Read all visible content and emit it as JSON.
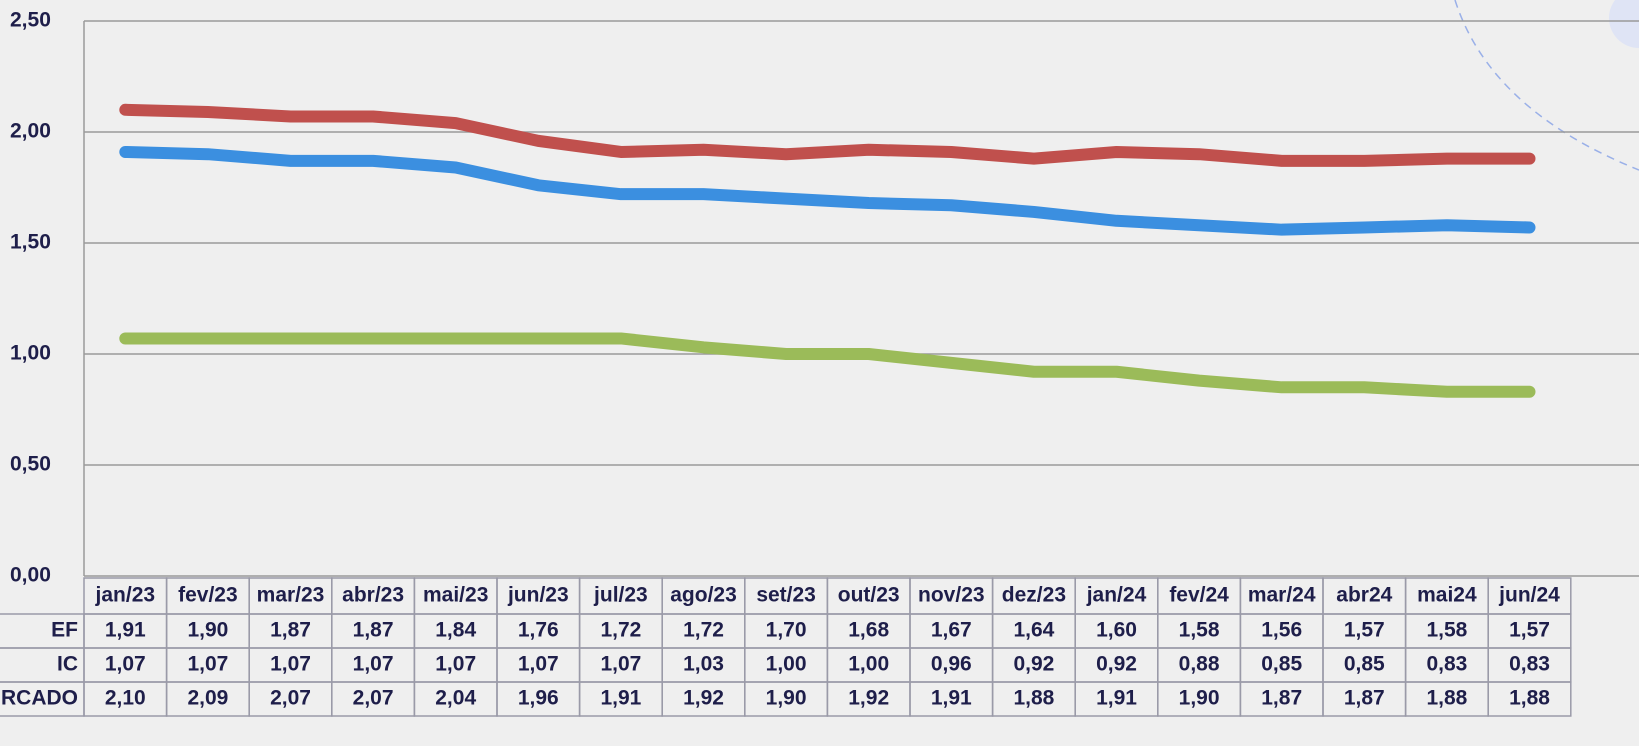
{
  "chart_data": {
    "type": "line",
    "categories": [
      "jan/23",
      "fev/23",
      "mar/23",
      "abr/23",
      "mai/23",
      "jun/23",
      "jul/23",
      "ago/23",
      "set/23",
      "out/23",
      "nov/23",
      "dez/23",
      "jan/24",
      "fev/24",
      "mar/24",
      "abr24",
      "mai24",
      "jun/24"
    ],
    "series": [
      {
        "name": "EF",
        "color": "#3b8fe0",
        "values": [
          1.91,
          1.9,
          1.87,
          1.87,
          1.84,
          1.76,
          1.72,
          1.72,
          1.7,
          1.68,
          1.67,
          1.64,
          1.6,
          1.58,
          1.56,
          1.57,
          1.58,
          1.57
        ],
        "value_labels": [
          "1,91",
          "1,90",
          "1,87",
          "1,87",
          "1,84",
          "1,76",
          "1,72",
          "1,72",
          "1,70",
          "1,68",
          "1,67",
          "1,64",
          "1,60",
          "1,58",
          "1,56",
          "1,57",
          "1,58",
          "1,57"
        ]
      },
      {
        "name": "IC",
        "color": "#9bbb59",
        "values": [
          1.07,
          1.07,
          1.07,
          1.07,
          1.07,
          1.07,
          1.07,
          1.03,
          1.0,
          1.0,
          0.96,
          0.92,
          0.92,
          0.88,
          0.85,
          0.85,
          0.83,
          0.83
        ],
        "value_labels": [
          "1,07",
          "1,07",
          "1,07",
          "1,07",
          "1,07",
          "1,07",
          "1,07",
          "1,03",
          "1,00",
          "1,00",
          "0,96",
          "0,92",
          "0,92",
          "0,88",
          "0,85",
          "0,85",
          "0,83",
          "0,83"
        ]
      },
      {
        "name": "RCADO",
        "color": "#c0504d",
        "values": [
          2.1,
          2.09,
          2.07,
          2.07,
          2.04,
          1.96,
          1.91,
          1.92,
          1.9,
          1.92,
          1.91,
          1.88,
          1.91,
          1.9,
          1.87,
          1.87,
          1.88,
          1.88
        ],
        "value_labels": [
          "2,10",
          "2,09",
          "2,07",
          "2,07",
          "2,04",
          "1,96",
          "1,91",
          "1,92",
          "1,90",
          "1,92",
          "1,91",
          "1,88",
          "1,91",
          "1,90",
          "1,87",
          "1,87",
          "1,88",
          "1,88"
        ]
      }
    ],
    "ylim": [
      0,
      2.5
    ],
    "yticks": [
      {
        "value": 0,
        "label": "0,00"
      },
      {
        "value": 0.5,
        "label": "0,50"
      },
      {
        "value": 1,
        "label": "1,00"
      },
      {
        "value": 1.5,
        "label": "1,50"
      },
      {
        "value": 2,
        "label": "2,00"
      },
      {
        "value": 2.5,
        "label": "2,50"
      }
    ],
    "grid": true
  }
}
